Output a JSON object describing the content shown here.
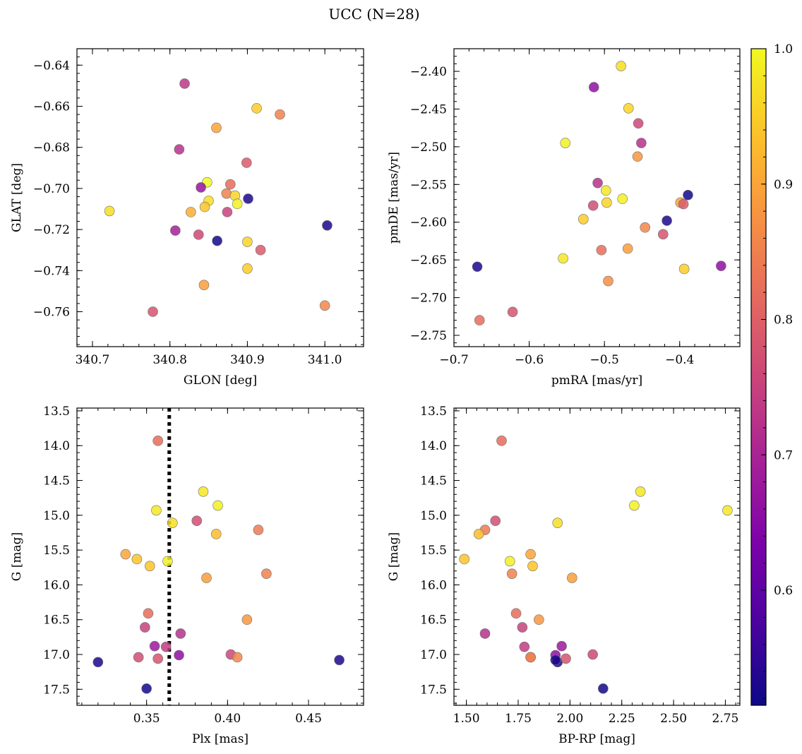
{
  "figure": {
    "title": "UCC (N=28)"
  },
  "colorbar": {
    "colormap": "plasma",
    "vmin": 0.515,
    "vmax": 1.0,
    "ticks": [
      0.6,
      0.7,
      0.8,
      0.9,
      1.0
    ],
    "tick_labels": [
      "0.6",
      "0.7",
      "0.8",
      "0.9",
      "1.0"
    ]
  },
  "chart_data": [
    {
      "type": "scatter",
      "id": "lonlat",
      "xlabel": "GLON [deg]",
      "ylabel": "GLAT [deg]",
      "xlim": [
        340.68,
        341.05
      ],
      "ylim": [
        -0.777,
        -0.632
      ],
      "x_ticks": [
        340.7,
        340.8,
        340.9,
        341.0
      ],
      "x_tick_labels": [
        "340.7",
        "340.8",
        "340.9",
        "341.0"
      ],
      "y_ticks": [
        -0.64,
        -0.66,
        -0.68,
        -0.7,
        -0.72,
        -0.74,
        -0.76
      ],
      "y_tick_labels": [
        "−0.64",
        "−0.66",
        "−0.68",
        "−0.70",
        "−0.72",
        "−0.74",
        "−0.76"
      ],
      "x": [
        340.819,
        340.912,
        340.942,
        340.86,
        340.812,
        340.899,
        340.848,
        340.84,
        340.878,
        340.873,
        340.884,
        340.85,
        340.887,
        340.901,
        340.845,
        340.827,
        340.874,
        341.003,
        340.807,
        340.837,
        340.861,
        340.9,
        340.917,
        340.722,
        340.9,
        340.844,
        340.778,
        341.0
      ],
      "y": [
        -0.649,
        -0.661,
        -0.664,
        -0.6705,
        -0.681,
        -0.6875,
        -0.697,
        -0.6995,
        -0.698,
        -0.7025,
        -0.7035,
        -0.706,
        -0.7075,
        -0.705,
        -0.709,
        -0.7115,
        -0.7115,
        -0.718,
        -0.7205,
        -0.7225,
        -0.7255,
        -0.726,
        -0.73,
        -0.711,
        -0.739,
        -0.747,
        -0.76,
        -0.757
      ],
      "c": [
        0.73,
        0.95,
        0.85,
        0.9,
        0.72,
        0.79,
        1.0,
        0.67,
        0.82,
        0.85,
        0.96,
        0.97,
        0.99,
        0.53,
        0.94,
        0.91,
        0.75,
        0.53,
        0.69,
        0.76,
        0.52,
        0.96,
        0.79,
        0.97,
        0.95,
        0.89,
        0.78,
        0.86
      ]
    },
    {
      "type": "scatter",
      "id": "pm",
      "xlabel": "pmRA [mas/yr]",
      "ylabel": "pmDE [mas/yr]",
      "xlim": [
        -0.7,
        -0.32
      ],
      "ylim": [
        -2.765,
        -2.37
      ],
      "x_ticks": [
        -0.7,
        -0.6,
        -0.5,
        -0.4
      ],
      "x_tick_labels": [
        "−0.7",
        "−0.6",
        "−0.5",
        "−0.4"
      ],
      "y_ticks": [
        -2.4,
        -2.45,
        -2.5,
        -2.55,
        -2.6,
        -2.65,
        -2.7,
        -2.75
      ],
      "y_tick_labels": [
        "−2.40",
        "−2.45",
        "−2.50",
        "−2.55",
        "−2.60",
        "−2.65",
        "−2.70",
        "−2.75"
      ],
      "x": [
        -0.478,
        -0.514,
        -0.468,
        -0.455,
        -0.552,
        -0.451,
        -0.456,
        -0.509,
        -0.498,
        -0.389,
        -0.476,
        -0.399,
        -0.497,
        -0.515,
        -0.395,
        -0.417,
        -0.528,
        -0.446,
        -0.422,
        -0.469,
        -0.504,
        -0.555,
        -0.394,
        -0.345,
        -0.669,
        -0.495,
        -0.622,
        -0.666
      ],
      "y": [
        -2.393,
        -2.421,
        -2.449,
        -2.469,
        -2.495,
        -2.495,
        -2.513,
        -2.548,
        -2.558,
        -2.564,
        -2.569,
        -2.574,
        -2.574,
        -2.578,
        -2.576,
        -2.598,
        -2.596,
        -2.607,
        -2.616,
        -2.635,
        -2.637,
        -2.648,
        -2.662,
        -2.658,
        -2.659,
        -2.678,
        -2.719,
        -2.73
      ],
      "c": [
        0.97,
        0.66,
        0.96,
        0.76,
        0.99,
        0.72,
        0.88,
        0.72,
        0.98,
        0.52,
        0.99,
        0.9,
        0.96,
        0.77,
        0.79,
        0.53,
        0.95,
        0.86,
        0.78,
        0.89,
        0.82,
        0.98,
        0.95,
        0.66,
        0.53,
        0.87,
        0.78,
        0.82
      ]
    },
    {
      "type": "scatter",
      "id": "plx_g",
      "xlabel": "Plx [mas]",
      "ylabel": "G [mag]",
      "xlim": [
        0.307,
        0.484
      ],
      "ylim": [
        17.73,
        13.46
      ],
      "y_inverted": true,
      "vline": 0.364,
      "x_ticks": [
        0.35,
        0.4,
        0.45
      ],
      "x_tick_labels": [
        "0.35",
        "0.40",
        "0.45"
      ],
      "y_ticks": [
        13.5,
        14.0,
        14.5,
        15.0,
        15.5,
        16.0,
        16.5,
        17.0,
        17.5
      ],
      "y_tick_labels": [
        "13.5",
        "14.0",
        "14.5",
        "15.0",
        "15.5",
        "16.0",
        "16.5",
        "17.0",
        "17.5"
      ],
      "x": [
        0.357,
        0.385,
        0.394,
        0.356,
        0.366,
        0.381,
        0.419,
        0.393,
        0.337,
        0.344,
        0.363,
        0.352,
        0.424,
        0.387,
        0.351,
        0.412,
        0.349,
        0.355,
        0.362,
        0.371,
        0.37,
        0.32,
        0.345,
        0.357,
        0.402,
        0.406,
        0.469,
        0.35
      ],
      "y": [
        13.93,
        14.66,
        14.86,
        14.93,
        15.11,
        15.08,
        15.21,
        15.27,
        15.56,
        15.63,
        15.66,
        15.73,
        15.84,
        15.9,
        16.41,
        16.5,
        16.61,
        16.88,
        16.89,
        16.7,
        17.01,
        17.11,
        17.04,
        17.06,
        17.0,
        17.04,
        17.08,
        17.49
      ],
      "c": [
        0.82,
        0.98,
        0.99,
        0.98,
        0.97,
        0.77,
        0.84,
        0.93,
        0.9,
        0.94,
        0.99,
        0.94,
        0.85,
        0.89,
        0.82,
        0.88,
        0.75,
        0.68,
        0.74,
        0.72,
        0.66,
        0.53,
        0.77,
        0.78,
        0.76,
        0.86,
        0.53,
        0.52
      ]
    },
    {
      "type": "scatter",
      "id": "color_g",
      "xlabel": "BP-RP [mag]",
      "ylabel": "G [mag]",
      "xlim": [
        1.44,
        2.82
      ],
      "ylim": [
        17.73,
        13.46
      ],
      "y_inverted": true,
      "x_ticks": [
        1.5,
        1.75,
        2.0,
        2.25,
        2.5,
        2.75
      ],
      "x_tick_labels": [
        "1.50",
        "1.75",
        "2.00",
        "2.25",
        "2.50",
        "2.75"
      ],
      "y_ticks": [
        13.5,
        14.0,
        14.5,
        15.0,
        15.5,
        16.0,
        16.5,
        17.0,
        17.5
      ],
      "y_tick_labels": [
        "13.5",
        "14.0",
        "14.5",
        "15.0",
        "15.5",
        "16.0",
        "16.5",
        "17.0",
        "17.5"
      ],
      "x": [
        1.67,
        2.34,
        2.31,
        2.76,
        1.94,
        1.64,
        1.59,
        1.56,
        1.81,
        1.49,
        1.71,
        1.82,
        1.72,
        2.01,
        1.74,
        1.85,
        1.77,
        1.96,
        1.78,
        1.59,
        1.93,
        1.94,
        1.81,
        1.98,
        2.11,
        1.81,
        1.93,
        2.16
      ],
      "y": [
        13.93,
        14.66,
        14.86,
        14.93,
        15.11,
        15.08,
        15.21,
        15.27,
        15.56,
        15.63,
        15.66,
        15.73,
        15.84,
        15.9,
        16.41,
        16.5,
        16.61,
        16.88,
        16.89,
        16.7,
        17.01,
        17.11,
        17.04,
        17.06,
        17.0,
        17.04,
        17.08,
        17.49
      ],
      "c": [
        0.82,
        0.98,
        0.99,
        0.98,
        0.97,
        0.77,
        0.84,
        0.93,
        0.9,
        0.94,
        0.99,
        0.94,
        0.85,
        0.89,
        0.82,
        0.88,
        0.75,
        0.68,
        0.74,
        0.72,
        0.66,
        0.53,
        0.77,
        0.78,
        0.76,
        0.86,
        0.53,
        0.52
      ]
    }
  ]
}
